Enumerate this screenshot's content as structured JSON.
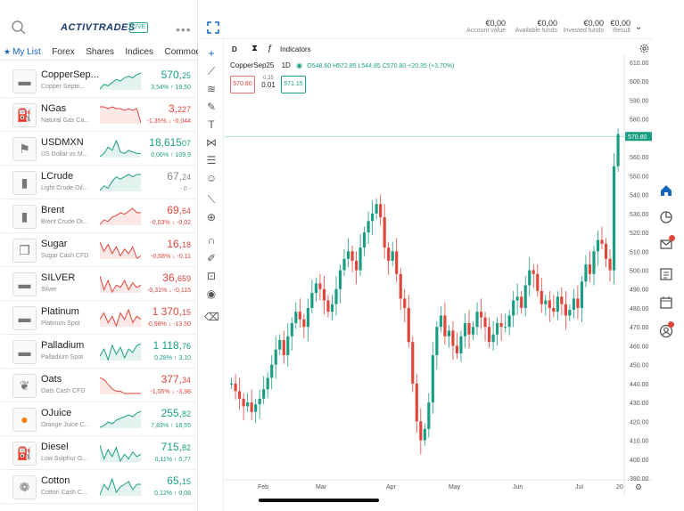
{
  "header": {
    "logo": "ACTIVTRADES",
    "live_badge": "LIVE",
    "more": "•••"
  },
  "tabs": [
    "My List",
    "Forex",
    "Shares",
    "Indices",
    "Commodities"
  ],
  "watchlist": [
    {
      "symbol": "CopperSep...",
      "desc": "Copper Septe...",
      "price_main": "570,",
      "price_sub": "25",
      "change": "3,54% ↑ 19,50",
      "dir": "up",
      "icon": "copper-bar-icon",
      "icon_glyph": "▬",
      "spark": [
        6,
        9,
        8,
        10,
        12,
        11,
        13,
        14,
        13,
        15,
        16
      ]
    },
    {
      "symbol": "NGas",
      "desc": "Natural Gas Ca...",
      "price_main": "3,",
      "price_sub": "227",
      "change": "-1,35% ↓ -0,044",
      "dir": "dn",
      "icon": "gas-cylinder-icon",
      "icon_glyph": "⛽",
      "spark": [
        15,
        15,
        14,
        15,
        14,
        14,
        13,
        14,
        13,
        14,
        6
      ]
    },
    {
      "symbol": "USDMXN",
      "desc": "US Dollar vs M...",
      "price_main": "18,615",
      "price_sub": "07",
      "change": "0,06% ↑ 109,9",
      "dir": "up",
      "icon": "us-mx-flag-icon",
      "icon_glyph": "⚑",
      "spark": [
        6,
        8,
        12,
        10,
        16,
        9,
        8,
        10,
        9,
        8,
        8
      ]
    },
    {
      "symbol": "LCrude",
      "desc": "Light Crude Oil...",
      "price_main": "67,",
      "price_sub": "24",
      "change": "- 0 -",
      "dir": "gr",
      "icon": "oil-barrel-icon",
      "icon_glyph": "▮",
      "spark": [
        6,
        8,
        7,
        10,
        12,
        11,
        12,
        13,
        12,
        13,
        13
      ]
    },
    {
      "symbol": "Brent",
      "desc": "Brent Crude Oi...",
      "price_main": "69,",
      "price_sub": "64",
      "change": "-0,03% ↓ -0,02",
      "dir": "dn",
      "icon": "oil-barrel-icon",
      "icon_glyph": "▮",
      "spark": [
        5,
        8,
        7,
        10,
        11,
        13,
        12,
        14,
        16,
        13,
        13
      ]
    },
    {
      "symbol": "Sugar",
      "desc": "Sugar Cash CFD",
      "price_main": "16,",
      "price_sub": "18",
      "change": "-0,68% ↓ -0,11",
      "dir": "dn",
      "icon": "sugar-cubes-icon",
      "icon_glyph": "❒",
      "spark": [
        14,
        10,
        13,
        9,
        12,
        8,
        11,
        9,
        12,
        7,
        8
      ]
    },
    {
      "symbol": "SILVER",
      "desc": "Silver",
      "price_main": "36,",
      "price_sub": "659",
      "change": "-0,31% ↓ -0,115",
      "dir": "dn",
      "icon": "silver-bar-icon",
      "icon_glyph": "▬",
      "spark": [
        14,
        8,
        12,
        7,
        10,
        9,
        12,
        8,
        11,
        9,
        10
      ]
    },
    {
      "symbol": "Platinum",
      "desc": "Platinum Spot",
      "price_main": "1 370,",
      "price_sub": "15",
      "change": "-0,98% ↓ -13,50",
      "dir": "dn",
      "icon": "platinum-bar-icon",
      "icon_glyph": "▬",
      "spark": [
        10,
        12,
        9,
        11,
        8,
        12,
        10,
        13,
        9,
        11,
        10
      ]
    },
    {
      "symbol": "Palladium",
      "desc": "Palladium Spot",
      "price_main": "1 118,",
      "price_sub": "76",
      "change": "0,28% ↑ 3,10",
      "dir": "up",
      "icon": "palladium-bar-icon",
      "icon_glyph": "▬",
      "spark": [
        8,
        12,
        6,
        14,
        9,
        13,
        7,
        12,
        10,
        14,
        15
      ]
    },
    {
      "symbol": "Oats",
      "desc": "Oats Cash CFD",
      "price_main": "377,",
      "price_sub": "34",
      "change": "-1,05% ↓ -3,98",
      "dir": "dn",
      "icon": "oats-grain-icon",
      "icon_glyph": "❦",
      "spark": [
        15,
        14,
        12,
        10,
        9,
        9,
        8,
        8,
        8,
        8,
        8
      ]
    },
    {
      "symbol": "OJuice",
      "desc": "Orange Juice C...",
      "price_main": "255,",
      "price_sub": "82",
      "change": "7,83% ↑ 18,55",
      "dir": "up",
      "icon": "orange-icon",
      "icon_glyph": "●",
      "spark": [
        6,
        7,
        9,
        8,
        10,
        11,
        12,
        13,
        12,
        14,
        15
      ]
    },
    {
      "symbol": "Diesel",
      "desc": "Low Sulphur G...",
      "price_main": "715,",
      "price_sub": "82",
      "change": "0,11% ↑ 0,77",
      "dir": "up",
      "icon": "fuel-can-icon",
      "icon_glyph": "⛽",
      "spark": [
        14,
        8,
        12,
        9,
        13,
        7,
        10,
        8,
        11,
        9,
        10
      ]
    },
    {
      "symbol": "Cotton",
      "desc": "Cotton Cash C...",
      "price_main": "65,",
      "price_sub": "15",
      "change": "0,12% ↑ 0,08",
      "dir": "up",
      "icon": "cotton-icon",
      "icon_glyph": "❁",
      "spark": [
        8,
        12,
        10,
        14,
        9,
        11,
        12,
        13,
        10,
        12,
        12
      ]
    }
  ],
  "account": [
    {
      "value": "€0,00",
      "label": "Account value"
    },
    {
      "value": "€0,00",
      "label": "Available funds"
    },
    {
      "value": "€0,00",
      "label": "Invested funds"
    },
    {
      "value": "€0,00",
      "label": "Result"
    }
  ],
  "chartbar": {
    "interval": "D",
    "indicators_label": "Indicators"
  },
  "legend": {
    "symbol": "CopperSep25",
    "timeframe": "1D",
    "ohlc": "O548.60 H572.85 L544.85 C570.80 +20.35 (+3.70%)"
  },
  "trade": {
    "sell": "570.80",
    "spread_top": "0.35",
    "spread_bottom": "0.01",
    "buy": "571.15"
  },
  "colors": {
    "up": "#1a9e83",
    "down": "#e0453a",
    "accent": "#1565c0"
  },
  "chart_data": {
    "type": "candlestick",
    "title": "CopperSep25 1D",
    "ylim": [
      390,
      610
    ],
    "y_ticks": [
      "610.00",
      "600.00",
      "590.00",
      "580.00",
      "570.00",
      "560.00",
      "550.00",
      "540.00",
      "530.00",
      "520.00",
      "510.00",
      "500.00",
      "490.00",
      "480.00",
      "470.00",
      "460.00",
      "450.00",
      "440.00",
      "430.00",
      "420.00",
      "410.00",
      "400.00",
      "390.00"
    ],
    "x_ticks": [
      "Feb",
      "Mar",
      "Apr",
      "May",
      "Jun",
      "Jul",
      "20"
    ],
    "current_price": "570.80",
    "close_series": [
      440,
      436,
      432,
      428,
      430,
      425,
      429,
      432,
      437,
      443,
      450,
      458,
      463,
      455,
      465,
      472,
      478,
      474,
      470,
      480,
      488,
      493,
      490,
      484,
      478,
      482,
      490,
      500,
      506,
      510,
      505,
      500,
      512,
      520,
      526,
      530,
      535,
      528,
      512,
      505,
      510,
      498,
      485,
      480,
      462,
      440,
      420,
      410,
      416,
      430,
      455,
      470,
      476,
      465,
      468,
      460,
      456,
      465,
      472,
      466,
      470,
      478,
      475,
      470,
      462,
      466,
      472,
      470,
      470,
      476,
      484,
      486,
      480,
      492,
      500,
      498,
      489,
      482,
      484,
      480,
      478,
      486,
      482,
      476,
      479,
      485,
      480,
      494,
      503,
      498,
      510,
      516,
      514,
      506,
      500,
      555,
      572
    ]
  }
}
